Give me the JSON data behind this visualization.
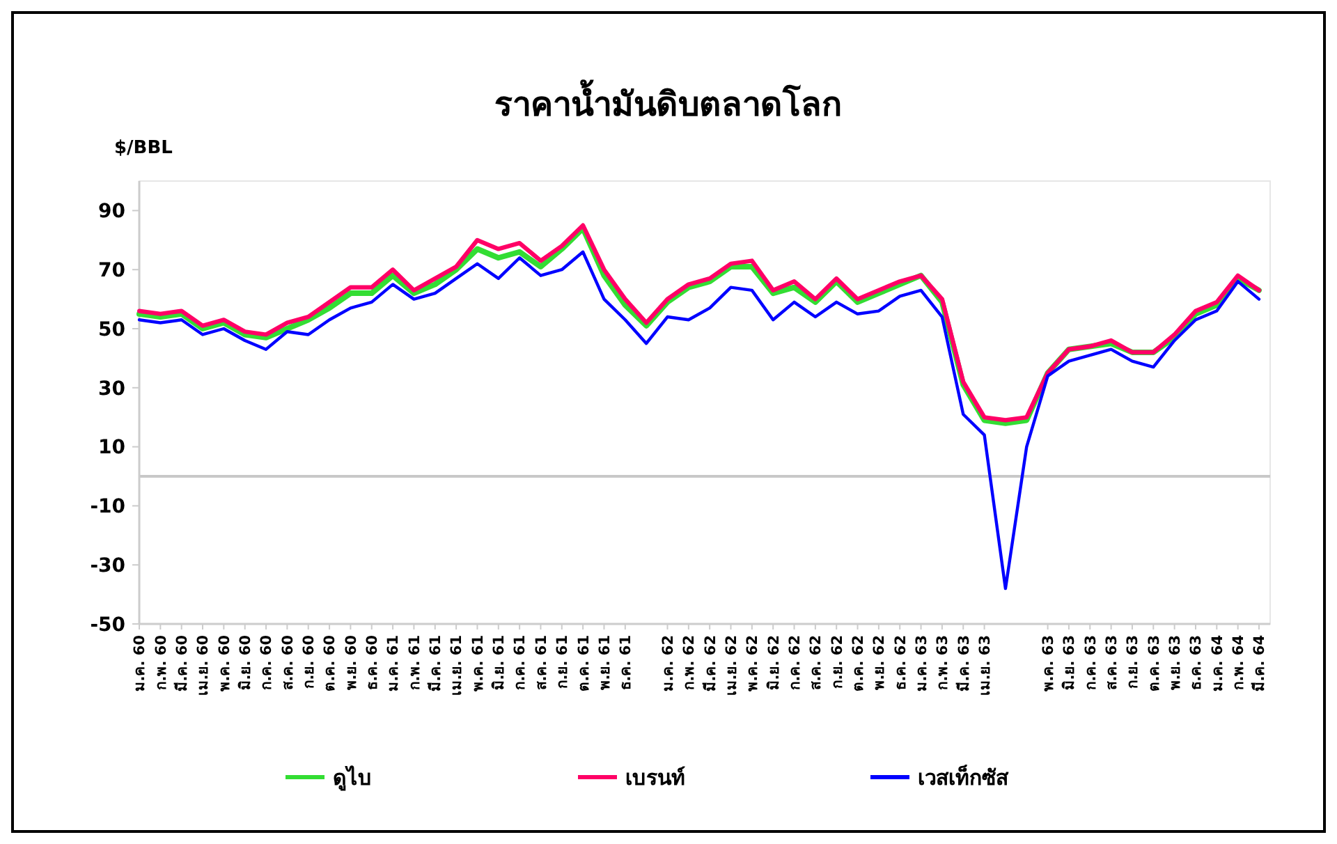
{
  "chart_data": {
    "type": "line",
    "title": "ราคาน้ำมันดิบตลาดโลก",
    "ylabel": "$/BBL",
    "categories": [
      "ม.ค. 60",
      "ก.พ. 60",
      "มี.ค. 60",
      "เม.ย. 60",
      "พ.ค. 60",
      "มิ.ย. 60",
      "ก.ค. 60",
      "ส.ค. 60",
      "ก.ย. 60",
      "ต.ค. 60",
      "พ.ย. 60",
      "ธ.ค. 60",
      "ม.ค. 61",
      "ก.พ. 61",
      "มี.ค. 61",
      "เม.ย. 61",
      "พ.ค. 61",
      "มิ.ย. 61",
      "ก.ค. 61",
      "ส.ค. 61",
      "ก.ย. 61",
      "ต.ค. 61",
      "พ.ย. 61",
      "ธ.ค. 61",
      null,
      "ม.ค. 62",
      "ก.พ. 62",
      "มี.ค. 62",
      "เม.ย. 62",
      "พ.ค. 62",
      "มิ.ย. 62",
      "ก.ค. 62",
      "ส.ค. 62",
      "ก.ย. 62",
      "ต.ค. 62",
      "พ.ย. 62",
      "ธ.ค. 62",
      "ม.ค. 63",
      "ก.พ. 63",
      "มี.ค. 63",
      "เม.ย. 63",
      null,
      null,
      "พ.ค. 63",
      "มิ.ย. 63",
      "ก.ค. 63",
      "ส.ค. 63",
      "ก.ย. 63",
      "ต.ค. 63",
      "พ.ย. 63",
      "ธ.ค. 63",
      "ม.ค. 64",
      "ก.พ. 64",
      "มี.ค. 64"
    ],
    "series": [
      {
        "name": "ดูไบ",
        "color": "#33dd33",
        "values": [
          55,
          54,
          55,
          50,
          52,
          48,
          47,
          50,
          53,
          57,
          62,
          62,
          68,
          62,
          65,
          70,
          77,
          74,
          76,
          71,
          77,
          84,
          68,
          58,
          51,
          59,
          64,
          66,
          71,
          71,
          62,
          64,
          59,
          66,
          59,
          62,
          65,
          68,
          59,
          31,
          19,
          18,
          19,
          35,
          43,
          44,
          45,
          42,
          42,
          47,
          55,
          58,
          67,
          63
        ]
      },
      {
        "name": "เบรนท์",
        "color": "#ff0066",
        "values": [
          56,
          55,
          56,
          51,
          53,
          49,
          48,
          52,
          54,
          59,
          64,
          64,
          70,
          63,
          67,
          71,
          80,
          77,
          79,
          73,
          78,
          85,
          70,
          60,
          52,
          60,
          65,
          67,
          72,
          73,
          63,
          66,
          60,
          67,
          60,
          63,
          66,
          68,
          60,
          32,
          20,
          19,
          20,
          35,
          43,
          44,
          46,
          42,
          42,
          48,
          56,
          59,
          68,
          63
        ]
      },
      {
        "name": "เวสเท็กซัส",
        "color": "#0000ff",
        "values": [
          53,
          52,
          53,
          48,
          50,
          46,
          43,
          49,
          48,
          53,
          57,
          59,
          65,
          60,
          62,
          67,
          72,
          67,
          74,
          68,
          70,
          76,
          60,
          53,
          45,
          54,
          53,
          57,
          64,
          63,
          53,
          59,
          54,
          59,
          55,
          56,
          61,
          63,
          54,
          21,
          14,
          -38,
          10,
          34,
          39,
          41,
          43,
          39,
          37,
          46,
          53,
          56,
          66,
          60
        ]
      }
    ],
    "ylim": [
      -50,
      100
    ],
    "yticks": [
      -50,
      -30,
      -10,
      10,
      30,
      50,
      70,
      90
    ],
    "ref_lines": [
      {
        "axis": "y",
        "value": 0,
        "color": "#c8c8c8"
      }
    ],
    "legend": "bottom"
  }
}
